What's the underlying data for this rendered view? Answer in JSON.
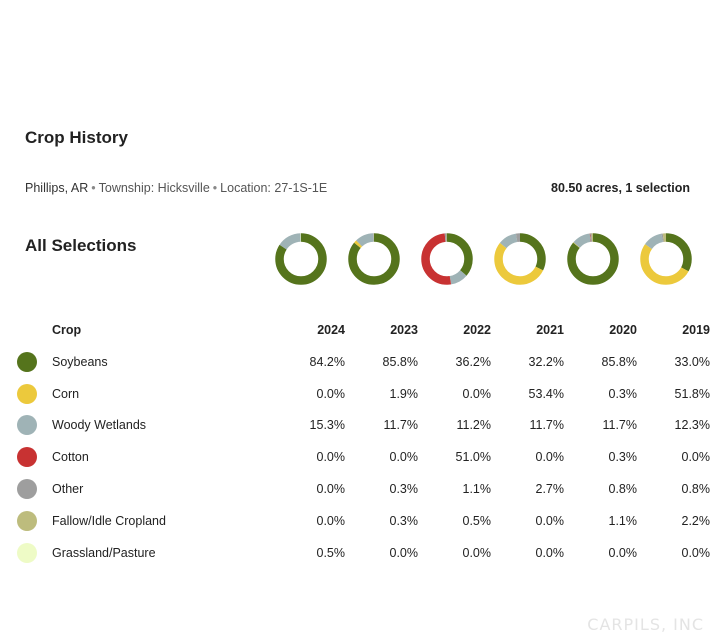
{
  "title": "Crop History",
  "location": {
    "county": "Phillips, AR",
    "township": "Township: Hicksville",
    "loc": "Location: 27-1S-1E"
  },
  "summary": "80.50 acres, 1 selection",
  "selections_title": "All Selections",
  "table": {
    "crop_header": "Crop",
    "years": [
      "2024",
      "2023",
      "2022",
      "2021",
      "2020",
      "2019"
    ],
    "rows": [
      {
        "crop": "Soybeans",
        "color": "#55741c",
        "values": [
          "84.2%",
          "85.8%",
          "36.2%",
          "32.2%",
          "85.8%",
          "33.0%"
        ]
      },
      {
        "crop": "Corn",
        "color": "#ecc93c",
        "values": [
          "0.0%",
          "1.9%",
          "0.0%",
          "53.4%",
          "0.3%",
          "51.8%"
        ]
      },
      {
        "crop": "Woody Wetlands",
        "color": "#9fb3b6",
        "values": [
          "15.3%",
          "11.7%",
          "11.2%",
          "11.7%",
          "11.7%",
          "12.3%"
        ]
      },
      {
        "crop": "Cotton",
        "color": "#c83232",
        "values": [
          "0.0%",
          "0.0%",
          "51.0%",
          "0.0%",
          "0.3%",
          "0.0%"
        ]
      },
      {
        "crop": "Other",
        "color": "#9e9e9e",
        "values": [
          "0.0%",
          "0.3%",
          "1.1%",
          "2.7%",
          "0.8%",
          "0.8%"
        ]
      },
      {
        "crop": "Fallow/Idle Cropland",
        "color": "#bdbc7d",
        "values": [
          "0.0%",
          "0.3%",
          "0.5%",
          "0.0%",
          "1.1%",
          "2.2%"
        ]
      },
      {
        "crop": "Grassland/Pasture",
        "color": "#eefbc6",
        "values": [
          "0.5%",
          "0.0%",
          "0.0%",
          "0.0%",
          "0.0%",
          "0.0%"
        ]
      }
    ]
  },
  "watermark": "CARPILS, INC"
}
